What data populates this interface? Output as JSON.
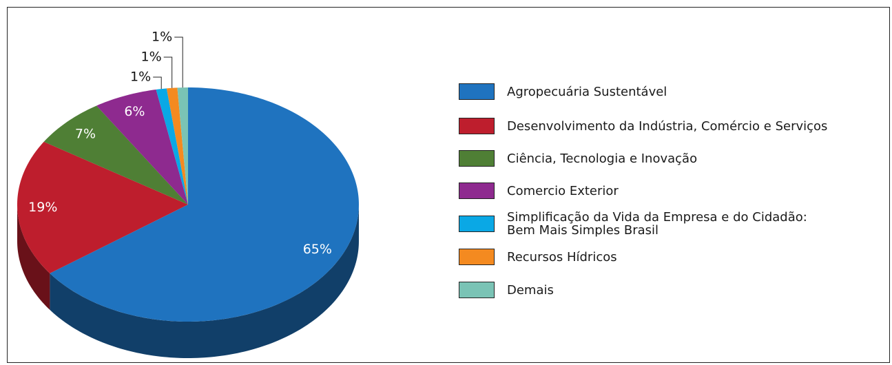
{
  "chart_data": {
    "type": "pie3d",
    "categories": [
      "Agropecuária Sustentável",
      "Desenvolvimento da Indústria, Comércio e Serviços",
      "Ciência, Tecnologia e Inovação",
      "Comercio Exterior",
      "Simplificação da Vida da Empresa e do Cidadão:\nBem Mais Simples Brasil",
      "Recursos Hídricos",
      "Demais"
    ],
    "values": [
      65,
      19,
      7,
      6,
      1,
      1,
      1
    ],
    "value_labels": [
      "65%",
      "19%",
      "7%",
      "6%",
      "1%",
      "1%",
      "1%"
    ],
    "colors": [
      "#1f73bf",
      "#be1e2d",
      "#4f7f35",
      "#8e2a8f",
      "#0aa8e5",
      "#f48a20",
      "#7ac3b5"
    ],
    "legend": "right"
  }
}
